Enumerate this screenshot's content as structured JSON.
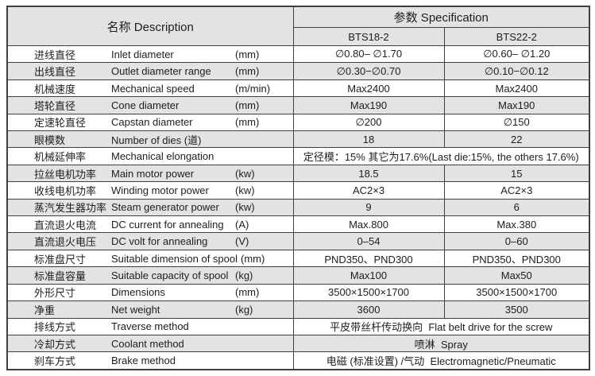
{
  "header": {
    "name_col": "名称  Description",
    "spec_col": "参数 Specification",
    "models": [
      "BTS18-2",
      "BTS22-2"
    ]
  },
  "rows": [
    {
      "cn": "进线直径",
      "en": "Inlet diameter",
      "unit": "(mm)",
      "v1": "∅0.80– ∅1.70",
      "v2": "∅0.60– ∅1.20"
    },
    {
      "cn": "出线直径",
      "en": "Outlet diameter range",
      "unit": "(mm)",
      "v1": "∅0.30−∅0.70",
      "v2": "∅0.10−∅0.12"
    },
    {
      "cn": "机械速度",
      "en": "Mechanical speed",
      "unit": "(m/min)",
      "v1": "Max2400",
      "v2": "Max2400"
    },
    {
      "cn": "塔轮直径",
      "en": "Cone diameter",
      "unit": "(mm)",
      "v1": "Max190",
      "v2": "Max190"
    },
    {
      "cn": "定速轮直径",
      "en": "Capstan diameter",
      "unit": "(mm)",
      "v1": "∅200",
      "v2": "∅150"
    },
    {
      "cn": "眼模数",
      "en": "Number of dies (道)",
      "unit": "",
      "v1": "18",
      "v2": "22"
    },
    {
      "cn": "机械延伸率",
      "en": "Mechanical elongation",
      "unit": "",
      "span": "定径模：15% 其它为17.6%(Last die:15%, the others 17.6%)"
    },
    {
      "cn": "拉丝电机功率",
      "en": "Main motor power",
      "unit": "(kw)",
      "v1": "18.5",
      "v2": "15"
    },
    {
      "cn": "收线电机功率",
      "en": "Winding motor power",
      "unit": "(kw)",
      "v1": "AC2×3",
      "v2": "AC2×3"
    },
    {
      "cn": "蒸汽发生器功率",
      "en": "Steam generator power",
      "unit": "(kw)",
      "v1": "9",
      "v2": "6"
    },
    {
      "cn": "直流退火电流",
      "en": "DC current for annealing",
      "unit": "(A)",
      "v1": "Max.800",
      "v2": "Max.380"
    },
    {
      "cn": "直流退火电压",
      "en": "DC volt for annealing",
      "unit": "(V)",
      "v1": "0–54",
      "v2": "0–60"
    },
    {
      "cn": "标准盘尺寸",
      "en": "Suitable dimension of spool",
      "unit": "(mm)",
      "v1": "PND350、PND300",
      "v2": "PND350、PND300"
    },
    {
      "cn": "标准盘容量",
      "en": "Suitable capacity of spool",
      "unit": "(kg)",
      "v1": "Max100",
      "v2": "Max50"
    },
    {
      "cn": "外形尺寸",
      "en": "Dimensions",
      "unit": "(mm)",
      "v1": "3500×1500×1700",
      "v2": "3500×1500×1700"
    },
    {
      "cn": "净重",
      "en": "Net weight",
      "unit": "(kg)",
      "v1": "3600",
      "v2": "3500"
    },
    {
      "cn": "排线方式",
      "en": "Traverse method",
      "unit": "",
      "span": "平皮带丝杆传动换向  Flat belt drive for the screw"
    },
    {
      "cn": "冷却方式",
      "en": "Coolant method",
      "unit": "",
      "span": "喷淋  Spray"
    },
    {
      "cn": "刹车方式",
      "en": "Brake method",
      "unit": "",
      "span": "电磁 (标准设置) /气动  Electromagnetic/Pneumatic"
    }
  ],
  "colors": {
    "table_border": "#3f3f3f",
    "row_shade": "#e3e3e3",
    "header_bg": "#e3e3e3",
    "text": "#1d1d1d",
    "background": "#ffffff"
  }
}
